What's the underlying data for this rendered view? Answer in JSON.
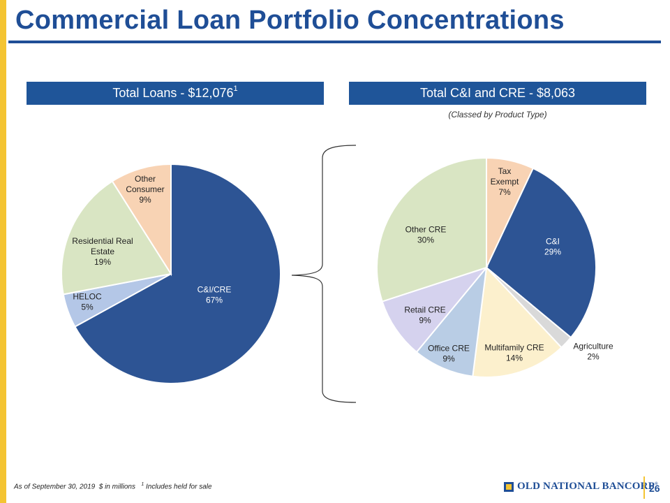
{
  "page": {
    "title": "Commercial Loan Portfolio Concentrations",
    "left_banner": {
      "text": "Total Loans - $12,076",
      "superscript": "1"
    },
    "right_banner": {
      "text": "Total C&I and CRE - $8,063"
    },
    "right_subtitle": "(Classed by Product Type)",
    "footer": {
      "date_note": "As of September 30, 2019",
      "units_note": "$ in millions",
      "footnote_marker": "1",
      "footnote_text": "Includes held for sale"
    },
    "logo_text": "OLD NATIONAL BANCORP",
    "logo_reg": "®",
    "page_number": "26"
  },
  "chart_data": [
    {
      "type": "pie",
      "title": "Total Loans - $12,076",
      "slices": [
        {
          "label": [
            "C&I/CRE",
            "67%"
          ],
          "value": 67,
          "color": "#2d5494",
          "text_color": "#ffffff"
        },
        {
          "label": [
            "HELOC",
            "5%"
          ],
          "value": 5,
          "color": "#b4c7e7",
          "text_color": "#222222"
        },
        {
          "label": [
            "Residential Real",
            "Estate",
            "19%"
          ],
          "value": 19,
          "color": "#d9e5c3",
          "text_color": "#222222"
        },
        {
          "label": [
            "Other",
            "Consumer",
            "9%"
          ],
          "value": 9,
          "color": "#f8d3b4",
          "text_color": "#222222"
        }
      ]
    },
    {
      "type": "pie",
      "title": "Total C&I and CRE - $8,063",
      "subtitle": "(Classed by Product Type)",
      "slices": [
        {
          "label": [
            "Tax",
            "Exempt",
            "7%"
          ],
          "value": 7,
          "color": "#f8d3b4",
          "text_color": "#222222"
        },
        {
          "label": [
            "C&I",
            "29%"
          ],
          "value": 29,
          "color": "#2d5494",
          "text_color": "#ffffff"
        },
        {
          "label": [
            "Agriculture",
            "2%"
          ],
          "value": 2,
          "color": "#d9d9d9",
          "text_color": "#222222"
        },
        {
          "label": [
            "Multifamily CRE",
            "14%"
          ],
          "value": 14,
          "color": "#fcf0cd",
          "text_color": "#222222"
        },
        {
          "label": [
            "Office CRE",
            "9%"
          ],
          "value": 9,
          "color": "#b9cde5",
          "text_color": "#222222"
        },
        {
          "label": [
            "Retail CRE",
            "9%"
          ],
          "value": 9,
          "color": "#d5d2ee",
          "text_color": "#222222"
        },
        {
          "label": [
            "Other CRE",
            "30%"
          ],
          "value": 30,
          "color": "#d9e5c3",
          "text_color": "#222222"
        }
      ]
    }
  ]
}
